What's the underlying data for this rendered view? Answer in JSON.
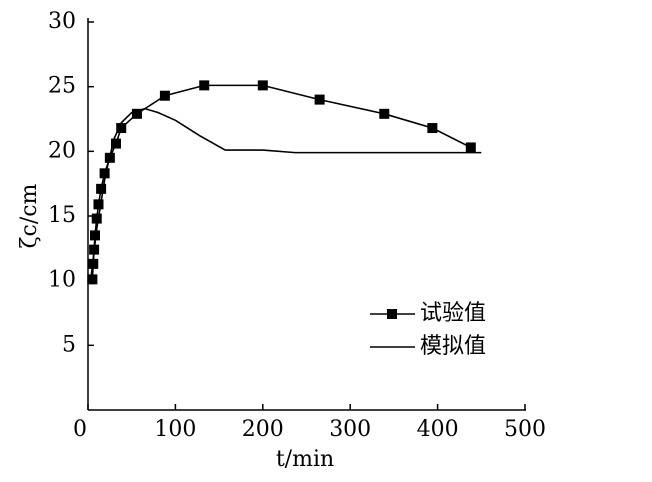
{
  "chart_data": {
    "type": "line",
    "xlabel": "t/min",
    "ylabel": "ζc/cm",
    "xlim": [
      0,
      500
    ],
    "xticks": [
      0,
      100,
      200,
      300,
      400,
      500
    ],
    "ylim": [
      0,
      30
    ],
    "yticks": [
      5,
      10,
      15,
      20,
      25,
      30
    ],
    "legend": "lower right",
    "series": [
      {
        "name": "试验值",
        "color": "#000000",
        "marker": "square",
        "x": [
          5,
          6,
          7,
          8,
          10,
          12,
          15,
          19,
          25,
          32,
          38,
          56,
          88,
          133,
          200,
          265,
          339,
          394,
          438
        ],
        "values": [
          10.1,
          11.3,
          12.4,
          13.5,
          14.8,
          15.9,
          17.1,
          18.3,
          19.5,
          20.6,
          21.8,
          22.9,
          24.3,
          25.1,
          25.1,
          24.0,
          22.9,
          21.8,
          20.3
        ]
      },
      {
        "name": "模拟值",
        "color": "#000000",
        "marker": "none",
        "x": [
          3,
          10,
          20,
          30,
          38,
          50,
          65,
          80,
          100,
          128,
          157,
          200,
          237,
          300,
          450
        ],
        "values": [
          10.0,
          14.0,
          18.2,
          21.0,
          22.2,
          23.0,
          23.3,
          23.0,
          22.4,
          21.2,
          20.1,
          20.1,
          19.9,
          19.9,
          19.9
        ]
      }
    ]
  }
}
